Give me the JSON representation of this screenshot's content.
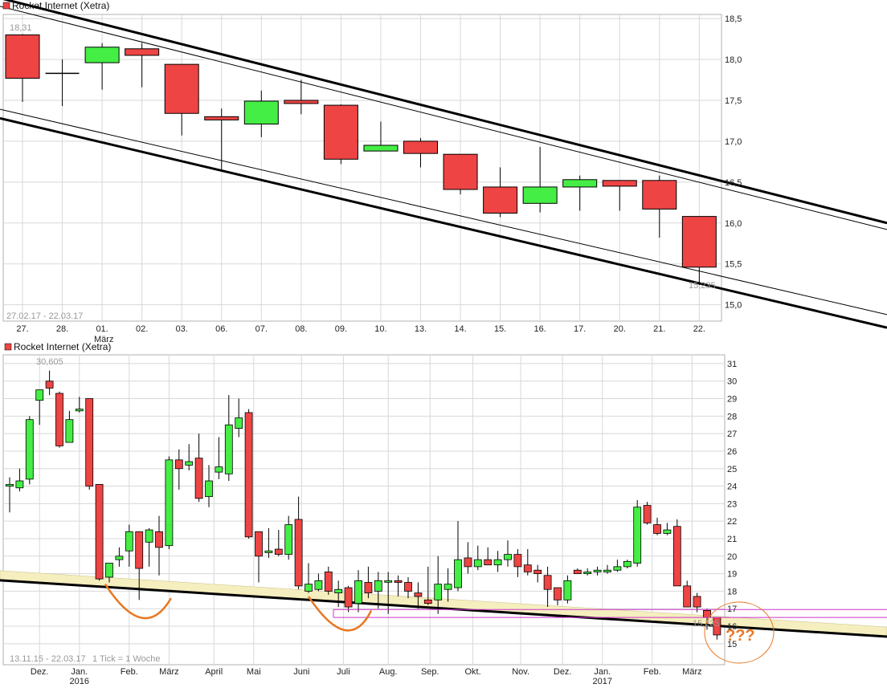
{
  "colors": {
    "up": "#44ee44",
    "down": "#ee4444",
    "grid": "#d8d8d8",
    "channel": "#000000",
    "band": "#f5eebe",
    "annot": "#e87722",
    "magenta": "#cc33cc"
  },
  "chart_data": [
    {
      "type": "candlestick",
      "title": "Rocket Internet (Xetra)",
      "range_label": "27.02.17 - 22.03.17",
      "high_label": "18,31",
      "low_label": "15,235",
      "ylim": [
        14.8,
        18.55
      ],
      "y_ticks": [
        {
          "v": 15.0,
          "t": "15,0"
        },
        {
          "v": 15.5,
          "t": "15,5"
        },
        {
          "v": 16.0,
          "t": "16,0"
        },
        {
          "v": 16.5,
          "t": "16,5"
        },
        {
          "v": 17.0,
          "t": "17,0"
        },
        {
          "v": 17.5,
          "t": "17,5"
        },
        {
          "v": 18.0,
          "t": "18,0"
        },
        {
          "v": 18.5,
          "t": "18,5"
        }
      ],
      "month_label": "März",
      "candles": [
        {
          "d": "27.",
          "o": 18.3,
          "h": 18.31,
          "l": 17.48,
          "c": 17.77
        },
        {
          "d": "28.",
          "o": 17.83,
          "h": 18.0,
          "l": 17.43,
          "c": 17.83
        },
        {
          "d": "01.",
          "o": 17.96,
          "h": 18.2,
          "l": 17.63,
          "c": 18.15
        },
        {
          "d": "02.",
          "o": 18.13,
          "h": 18.2,
          "l": 17.66,
          "c": 18.05
        },
        {
          "d": "03.",
          "o": 17.94,
          "h": 17.94,
          "l": 17.07,
          "c": 17.34
        },
        {
          "d": "06.",
          "o": 17.3,
          "h": 17.4,
          "l": 16.65,
          "c": 17.26
        },
        {
          "d": "07.",
          "o": 17.21,
          "h": 17.62,
          "l": 17.05,
          "c": 17.49
        },
        {
          "d": "08.",
          "o": 17.5,
          "h": 17.75,
          "l": 17.33,
          "c": 17.47
        },
        {
          "d": "09.",
          "o": 17.44,
          "h": 17.45,
          "l": 16.72,
          "c": 16.78
        },
        {
          "d": "10.",
          "o": 16.88,
          "h": 17.24,
          "l": 16.88,
          "c": 16.95
        },
        {
          "d": "13.",
          "o": 17.0,
          "h": 17.04,
          "l": 16.68,
          "c": 16.85
        },
        {
          "d": "14.",
          "o": 16.84,
          "h": 16.84,
          "l": 16.35,
          "c": 16.41
        },
        {
          "d": "15.",
          "o": 16.44,
          "h": 16.68,
          "l": 16.07,
          "c": 16.12
        },
        {
          "d": "16.",
          "o": 16.24,
          "h": 16.93,
          "l": 16.13,
          "c": 16.44
        },
        {
          "d": "17.",
          "o": 16.44,
          "h": 16.58,
          "l": 16.15,
          "c": 16.53
        },
        {
          "d": "20.",
          "o": 16.52,
          "h": 16.52,
          "l": 16.15,
          "c": 16.45
        },
        {
          "d": "21.",
          "o": 16.52,
          "h": 16.58,
          "l": 15.82,
          "c": 16.17
        },
        {
          "d": "22.",
          "o": 16.08,
          "h": 16.08,
          "l": 15.24,
          "c": 15.46
        }
      ],
      "trend_lines": [
        {
          "w": 3,
          "a": [
            18.75,
            "27."
          ],
          "b": [
            16.0,
            "+4.5"
          ]
        },
        {
          "w": 1,
          "a": [
            18.65,
            "27."
          ],
          "b": [
            15.92,
            "+4.5"
          ]
        },
        {
          "w": 1,
          "a": [
            17.39,
            "27."
          ],
          "b": [
            14.88,
            "+4.5"
          ]
        },
        {
          "w": 3,
          "a": [
            17.28,
            "27."
          ],
          "b": [
            14.72,
            "+4.5"
          ]
        }
      ]
    },
    {
      "type": "candlestick",
      "title": "Rocket Internet (Xetra)",
      "range_label": "13.11.15 - 22.03.17",
      "tick_note": "1 Tick = 1 Woche",
      "high_label": "30,605",
      "low_label": "15,235",
      "ylim": [
        13.8,
        31.5
      ],
      "y_ticks": [
        15,
        16,
        17,
        18,
        19,
        20,
        21,
        22,
        23,
        24,
        25,
        26,
        27,
        28,
        29,
        30,
        31
      ],
      "x_labels": [
        {
          "t": "Dez.",
          "i": 3
        },
        {
          "t": "Jan.",
          "i": 7,
          "y": "2016"
        },
        {
          "t": "Feb.",
          "i": 12
        },
        {
          "t": "März",
          "i": 16
        },
        {
          "t": "April",
          "i": 20.5
        },
        {
          "t": "Mai",
          "i": 24.5
        },
        {
          "t": "Juni",
          "i": 29.3
        },
        {
          "t": "Juli",
          "i": 33.5
        },
        {
          "t": "Aug.",
          "i": 38
        },
        {
          "t": "Sep.",
          "i": 42.2
        },
        {
          "t": "Okt.",
          "i": 46.5
        },
        {
          "t": "Nov.",
          "i": 51.3
        },
        {
          "t": "Dez.",
          "i": 55.5
        },
        {
          "t": "Jan.",
          "i": 59.5,
          "y": "2017"
        },
        {
          "t": "Feb.",
          "i": 64.5
        },
        {
          "t": "März",
          "i": 68.5
        }
      ],
      "candles": [
        {
          "o": 24.0,
          "h": 24.5,
          "l": 22.5,
          "c": 24.1
        },
        {
          "o": 23.9,
          "h": 25.0,
          "l": 23.7,
          "c": 24.3
        },
        {
          "o": 24.4,
          "h": 28.0,
          "l": 24.1,
          "c": 27.8
        },
        {
          "o": 28.9,
          "h": 29.5,
          "l": 27.5,
          "c": 29.5
        },
        {
          "o": 30.0,
          "h": 30.6,
          "l": 29.2,
          "c": 29.6
        },
        {
          "o": 29.3,
          "h": 29.4,
          "l": 26.2,
          "c": 26.3
        },
        {
          "o": 26.5,
          "h": 28.3,
          "l": 26.5,
          "c": 27.8
        },
        {
          "o": 28.3,
          "h": 29.1,
          "l": 28.2,
          "c": 28.4
        },
        {
          "o": 29.0,
          "h": 29.0,
          "l": 23.8,
          "c": 24.0
        },
        {
          "o": 24.1,
          "h": 24.1,
          "l": 18.6,
          "c": 18.7
        },
        {
          "o": 18.8,
          "h": 19.6,
          "l": 18.5,
          "c": 19.6
        },
        {
          "o": 19.8,
          "h": 20.5,
          "l": 19.4,
          "c": 20.0
        },
        {
          "o": 20.3,
          "h": 21.8,
          "l": 19.4,
          "c": 21.4
        },
        {
          "o": 21.4,
          "h": 21.4,
          "l": 17.5,
          "c": 19.3
        },
        {
          "o": 20.8,
          "h": 21.6,
          "l": 19.4,
          "c": 21.5
        },
        {
          "o": 21.4,
          "h": 22.3,
          "l": 18.9,
          "c": 20.5
        },
        {
          "o": 20.6,
          "h": 25.7,
          "l": 20.4,
          "c": 25.5
        },
        {
          "o": 25.5,
          "h": 26.1,
          "l": 23.8,
          "c": 25.0
        },
        {
          "o": 25.2,
          "h": 26.4,
          "l": 24.9,
          "c": 25.4
        },
        {
          "o": 25.6,
          "h": 27.0,
          "l": 23.1,
          "c": 23.3
        },
        {
          "o": 23.4,
          "h": 25.2,
          "l": 22.8,
          "c": 24.3
        },
        {
          "o": 24.8,
          "h": 26.8,
          "l": 24.4,
          "c": 25.1
        },
        {
          "o": 24.7,
          "h": 29.2,
          "l": 24.3,
          "c": 27.5
        },
        {
          "o": 27.3,
          "h": 29.0,
          "l": 26.8,
          "c": 27.9
        },
        {
          "o": 28.2,
          "h": 28.4,
          "l": 21.0,
          "c": 21.1
        },
        {
          "o": 21.4,
          "h": 21.4,
          "l": 18.5,
          "c": 20.0
        },
        {
          "o": 20.2,
          "h": 21.6,
          "l": 19.9,
          "c": 20.3
        },
        {
          "o": 20.4,
          "h": 21.5,
          "l": 20.0,
          "c": 20.1
        },
        {
          "o": 20.1,
          "h": 22.3,
          "l": 19.8,
          "c": 21.8
        },
        {
          "o": 22.1,
          "h": 23.4,
          "l": 18.1,
          "c": 18.3
        },
        {
          "o": 18.0,
          "h": 19.6,
          "l": 17.9,
          "c": 18.4
        },
        {
          "o": 18.1,
          "h": 19.0,
          "l": 18.0,
          "c": 18.6
        },
        {
          "o": 19.1,
          "h": 19.4,
          "l": 17.8,
          "c": 18.0
        },
        {
          "o": 17.9,
          "h": 18.6,
          "l": 17.1,
          "c": 18.1
        },
        {
          "o": 18.2,
          "h": 18.3,
          "l": 16.8,
          "c": 17.1
        },
        {
          "o": 17.3,
          "h": 19.2,
          "l": 16.8,
          "c": 18.6
        },
        {
          "o": 18.5,
          "h": 19.4,
          "l": 17.6,
          "c": 17.9
        },
        {
          "o": 18.0,
          "h": 19.1,
          "l": 17.0,
          "c": 18.6
        },
        {
          "o": 18.6,
          "h": 19.1,
          "l": 16.7,
          "c": 18.6
        },
        {
          "o": 18.6,
          "h": 18.9,
          "l": 17.7,
          "c": 18.5
        },
        {
          "o": 18.5,
          "h": 18.8,
          "l": 17.6,
          "c": 18.0
        },
        {
          "o": 17.9,
          "h": 18.5,
          "l": 17.0,
          "c": 17.7
        },
        {
          "o": 17.5,
          "h": 19.4,
          "l": 17.2,
          "c": 17.3
        },
        {
          "o": 17.5,
          "h": 20.0,
          "l": 16.7,
          "c": 18.4
        },
        {
          "o": 18.1,
          "h": 19.3,
          "l": 17.4,
          "c": 18.4
        },
        {
          "o": 18.2,
          "h": 22.0,
          "l": 18.0,
          "c": 19.8
        },
        {
          "o": 19.9,
          "h": 20.8,
          "l": 19.0,
          "c": 19.4
        },
        {
          "o": 19.4,
          "h": 20.6,
          "l": 19.2,
          "c": 19.8
        },
        {
          "o": 19.8,
          "h": 20.5,
          "l": 19.5,
          "c": 19.5
        },
        {
          "o": 19.5,
          "h": 20.3,
          "l": 19.1,
          "c": 19.8
        },
        {
          "o": 19.8,
          "h": 20.9,
          "l": 19.4,
          "c": 20.1
        },
        {
          "o": 20.1,
          "h": 20.4,
          "l": 18.8,
          "c": 19.4
        },
        {
          "o": 19.5,
          "h": 20.4,
          "l": 18.9,
          "c": 19.1
        },
        {
          "o": 19.2,
          "h": 19.5,
          "l": 18.5,
          "c": 19.0
        },
        {
          "o": 18.9,
          "h": 19.4,
          "l": 17.1,
          "c": 18.1
        },
        {
          "o": 18.2,
          "h": 18.2,
          "l": 17.2,
          "c": 17.5
        },
        {
          "o": 17.5,
          "h": 18.9,
          "l": 17.3,
          "c": 18.6
        },
        {
          "o": 19.2,
          "h": 19.3,
          "l": 19.0,
          "c": 19.0
        },
        {
          "o": 19.0,
          "h": 19.3,
          "l": 18.9,
          "c": 19.1
        },
        {
          "o": 19.1,
          "h": 19.4,
          "l": 18.9,
          "c": 19.2
        },
        {
          "o": 19.1,
          "h": 19.5,
          "l": 19.0,
          "c": 19.2
        },
        {
          "o": 19.2,
          "h": 19.8,
          "l": 19.1,
          "c": 19.4
        },
        {
          "o": 19.4,
          "h": 19.8,
          "l": 19.3,
          "c": 19.7
        },
        {
          "o": 19.6,
          "h": 23.2,
          "l": 19.4,
          "c": 22.8
        },
        {
          "o": 22.9,
          "h": 23.1,
          "l": 21.8,
          "c": 21.9
        },
        {
          "o": 21.8,
          "h": 22.2,
          "l": 21.2,
          "c": 21.3
        },
        {
          "o": 21.3,
          "h": 21.9,
          "l": 21.2,
          "c": 21.5
        },
        {
          "o": 21.7,
          "h": 22.1,
          "l": 18.3,
          "c": 18.3
        },
        {
          "o": 18.3,
          "h": 18.6,
          "l": 17.2,
          "c": 17.1
        },
        {
          "o": 17.7,
          "h": 17.9,
          "l": 16.8,
          "c": 17.1
        },
        {
          "o": 16.9,
          "h": 17.0,
          "l": 15.8,
          "c": 16.5
        },
        {
          "o": 16.5,
          "h": 16.5,
          "l": 15.235,
          "c": 15.5
        }
      ],
      "support_band": {
        "a": [
          18.6,
          -0.35
        ],
        "b": [
          16.0,
          71.6
        ],
        "thickness": 0.55
      },
      "resistance_lines": [
        16.95,
        16.5
      ],
      "annotation_text": "???"
    }
  ]
}
